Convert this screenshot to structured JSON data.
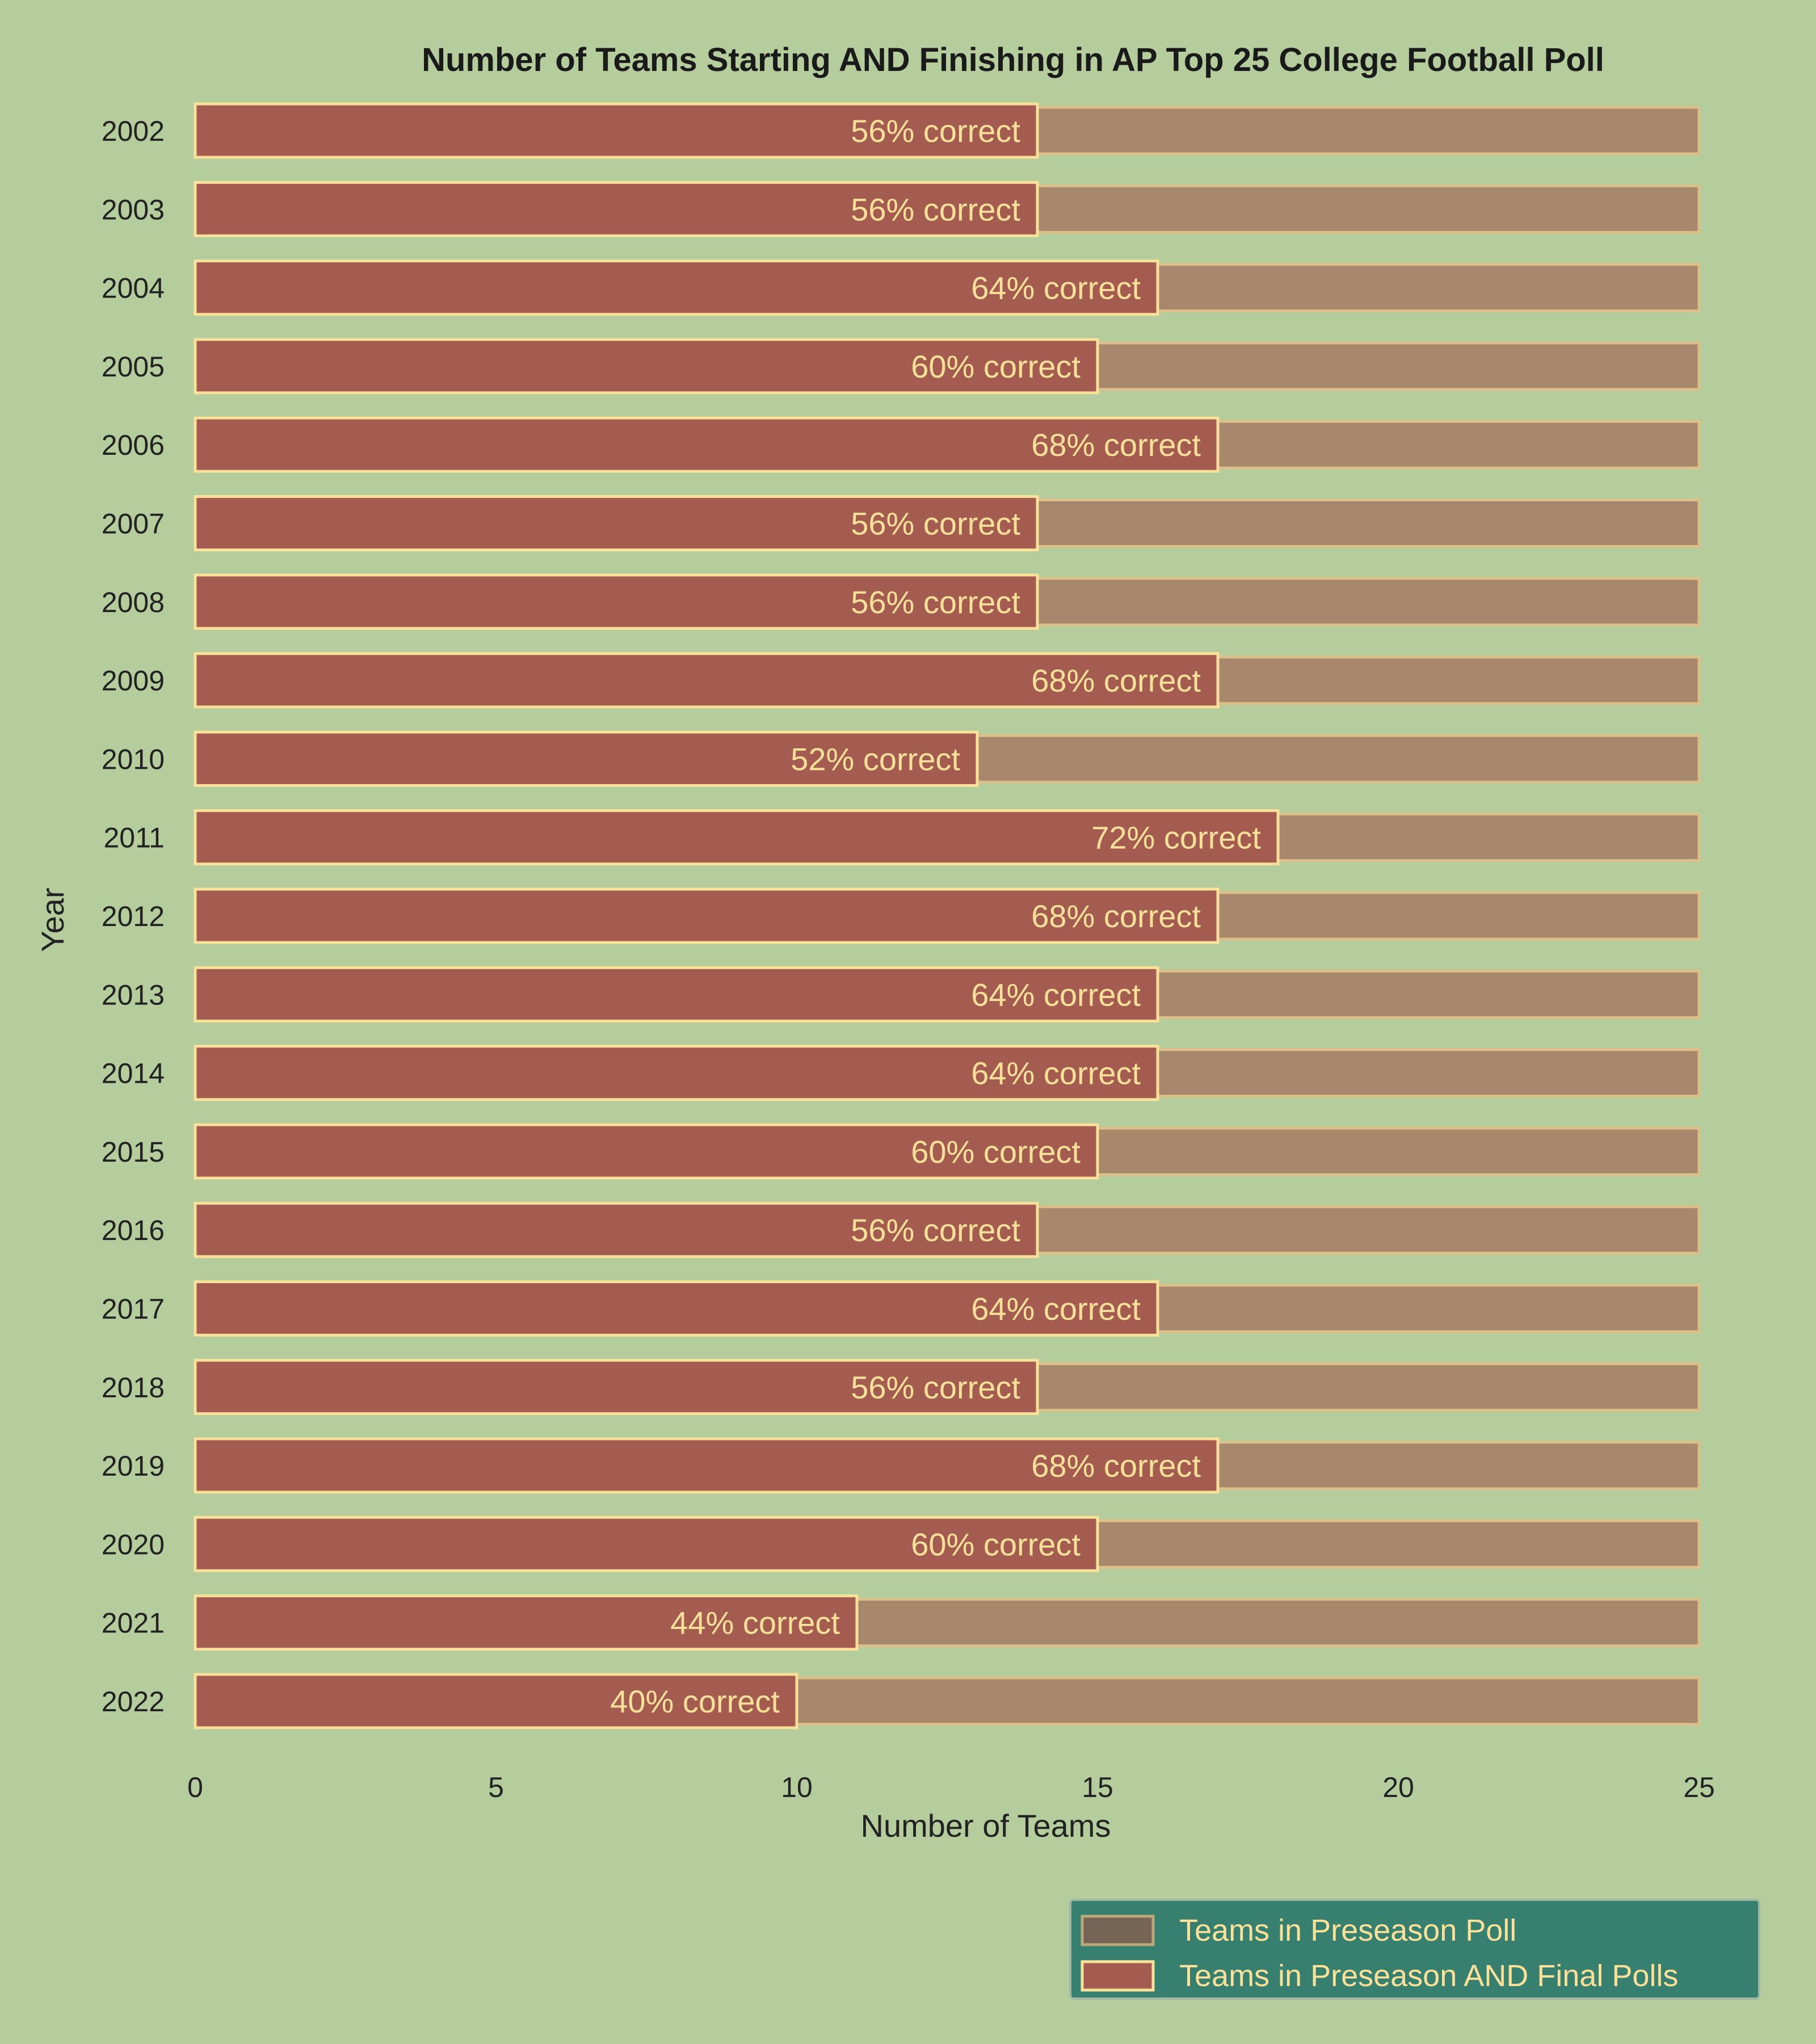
{
  "chart_data": {
    "type": "bar",
    "orientation": "horizontal",
    "title": "Number of Teams Starting AND Finishing in AP Top 25 College Football Poll",
    "xlabel": "Number of Teams",
    "ylabel": "Year",
    "xlim": [
      0,
      25
    ],
    "xticks": [
      "0",
      "5",
      "10",
      "15",
      "20",
      "25"
    ],
    "grid": false,
    "legend_position": "bottom-right",
    "categories": [
      "2002",
      "2003",
      "2004",
      "2005",
      "2006",
      "2007",
      "2008",
      "2009",
      "2010",
      "2011",
      "2012",
      "2013",
      "2014",
      "2015",
      "2016",
      "2017",
      "2018",
      "2019",
      "2020",
      "2021",
      "2022"
    ],
    "series": [
      {
        "name": "Teams in Preseason Poll",
        "color": "#a8886c",
        "edge": "#dcc08a",
        "values": [
          25,
          25,
          25,
          25,
          25,
          25,
          25,
          25,
          25,
          25,
          25,
          25,
          25,
          25,
          25,
          25,
          25,
          25,
          25,
          25,
          25
        ]
      },
      {
        "name": "Teams in Preseason AND Final Polls",
        "color": "#a35c4f",
        "edge": "#fbe09a",
        "values": [
          14,
          14,
          16,
          15,
          17,
          14,
          14,
          17,
          13,
          18,
          17,
          16,
          16,
          15,
          14,
          16,
          14,
          17,
          15,
          11,
          10
        ]
      }
    ],
    "data_labels": [
      "56% correct",
      "56% correct",
      "64% correct",
      "60% correct",
      "68% correct",
      "56% correct",
      "56% correct",
      "68% correct",
      "52% correct",
      "72% correct",
      "68% correct",
      "64% correct",
      "64% correct",
      "60% correct",
      "56% correct",
      "64% correct",
      "56% correct",
      "68% correct",
      "60% correct",
      "44% correct",
      "40% correct"
    ]
  },
  "legend": {
    "background": "#378070",
    "items": [
      {
        "label": "Teams in Preseason Poll",
        "swatch": "#766554"
      },
      {
        "label": "Teams in Preseason AND Final Polls",
        "swatch": "#a35c4f"
      }
    ]
  }
}
